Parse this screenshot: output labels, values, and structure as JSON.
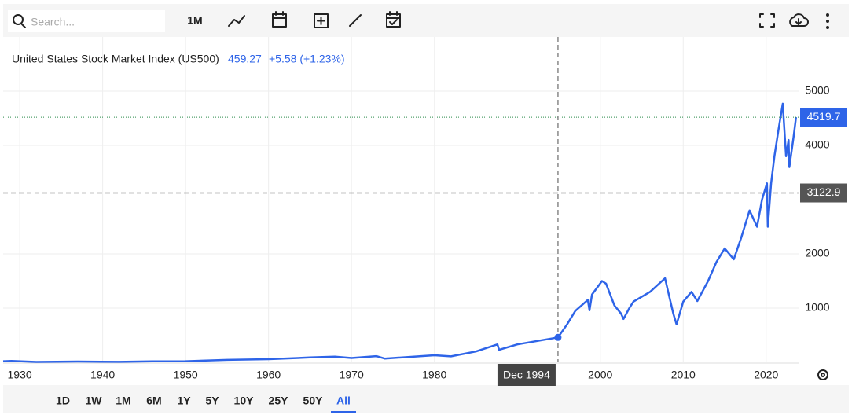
{
  "toolbar": {
    "search_placeholder": "Search...",
    "interval": "1M"
  },
  "chart_data": {
    "type": "line",
    "title": "United States Stock Market Index (US500)",
    "price": 459.27,
    "change": "+5.58 (+1.23%)",
    "color": "#2e64e8",
    "x": [
      1928,
      1929,
      1932,
      1937,
      1942,
      1946,
      1950,
      1955,
      1960,
      1965,
      1968,
      1970,
      1973,
      1974,
      1980,
      1982,
      1985,
      1987.6,
      1987.8,
      1990,
      1994.9,
      1996,
      1997,
      1998.5,
      1998.7,
      1999,
      2000.2,
      2000.7,
      2001.7,
      2002.5,
      2002.8,
      2003.5,
      2004,
      2006,
      2007.8,
      2008.8,
      2009.2,
      2010,
      2011,
      2011.7,
      2013,
      2014,
      2015,
      2016.1,
      2017,
      2018,
      2018.9,
      2019.5,
      2020.1,
      2020.2,
      2020.6,
      2021,
      2021.5,
      2022,
      2022.4,
      2022.7,
      2022.8,
      2023.3,
      2023.6
    ],
    "values": [
      20,
      25,
      7,
      15,
      9,
      18,
      20,
      45,
      58,
      90,
      105,
      80,
      115,
      70,
      130,
      110,
      200,
      330,
      230,
      330,
      459.27,
      700,
      950,
      1150,
      960,
      1250,
      1500,
      1450,
      1050,
      900,
      800,
      1000,
      1120,
      1300,
      1550,
      900,
      700,
      1120,
      1300,
      1130,
      1500,
      1850,
      2100,
      1900,
      2300,
      2800,
      2500,
      3000,
      3300,
      2500,
      3300,
      3800,
      4300,
      4770,
      3800,
      4100,
      3600,
      4150,
      4519.7
    ],
    "xlim": [
      1928,
      2024
    ],
    "ylim": [
      0,
      6000
    ],
    "xticks": [
      1930,
      1940,
      1950,
      1960,
      1970,
      1980,
      2000,
      2010,
      2020
    ],
    "yticks": [
      1000,
      2000,
      4000,
      5000
    ],
    "grid": true,
    "last_value": 4519.7,
    "crosshair": {
      "x": 1994.9,
      "label": "Dec 1994",
      "y": 3122.9
    }
  },
  "range_buttons": [
    "1D",
    "1W",
    "1M",
    "6M",
    "1Y",
    "5Y",
    "10Y",
    "25Y",
    "50Y",
    "All"
  ],
  "active_range_index": 9
}
